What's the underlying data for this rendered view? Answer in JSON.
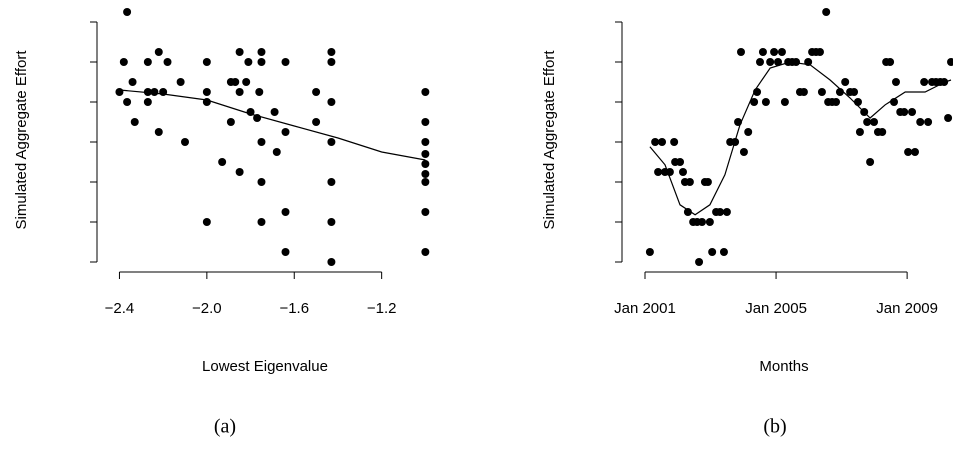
{
  "chart_data": [
    {
      "type": "scatter",
      "caption": "(a)",
      "xlabel": "Lowest Eigenvalue",
      "ylabel": "Simulated Aggregate Effort",
      "xlim": [
        -2.489,
        -0.933
      ],
      "xticks": [
        {
          "value": -2.4,
          "label": "−2.4"
        },
        {
          "value": -2.0,
          "label": "−2.0"
        },
        {
          "value": -1.6,
          "label": "−1.6"
        },
        {
          "value": -1.2,
          "label": "−1.2"
        }
      ],
      "ylim": [
        -0.25,
        6.5
      ],
      "yticks": [
        0,
        1,
        2,
        3,
        4,
        5,
        6
      ],
      "points": {
        "color": "#000000",
        "x": [
          -2.365,
          -2.4,
          -2.38,
          -2.365,
          -2.34,
          -2.33,
          -2.27,
          -2.27,
          -2.27,
          -2.24,
          -2.22,
          -2.22,
          -2.2,
          -2.18,
          -2.12,
          -2.1,
          -2.0,
          -2.0,
          -2.0,
          -2.0,
          -1.93,
          -1.89,
          -1.89,
          -1.87,
          -1.85,
          -1.85,
          -1.85,
          -1.82,
          -1.81,
          -1.8,
          -1.77,
          -1.76,
          -1.75,
          -1.75,
          -1.75,
          -1.75,
          -1.75,
          -1.69,
          -1.68,
          -1.64,
          -1.64,
          -1.64,
          -1.64,
          -1.5,
          -1.5,
          -1.43,
          -1.43,
          -1.43,
          -1.43,
          -1.43,
          -1.43,
          -1.43,
          -1.0,
          -1.0,
          -1.0,
          -1.0,
          -1.0,
          -1.0,
          -1.0,
          -1.0,
          -1.0
        ],
        "values": [
          6.25,
          4.25,
          5,
          4,
          4.5,
          3.5,
          5,
          4.25,
          4,
          4.25,
          5.25,
          3.25,
          4.25,
          5,
          4.5,
          3,
          5,
          4.25,
          4,
          1,
          2.5,
          4.5,
          3.5,
          4.5,
          5.25,
          4.25,
          2.25,
          4.5,
          5,
          3.75,
          3.6,
          4.25,
          5.25,
          5,
          3,
          2,
          1,
          3.75,
          2.75,
          5,
          3.25,
          1.25,
          0.25,
          4.25,
          3.5,
          5.25,
          5,
          4,
          3,
          2,
          1,
          0,
          4.25,
          3.5,
          3,
          2.7,
          2.45,
          2.2,
          2,
          1.25,
          0.25
        ]
      },
      "fit": {
        "color": "#000000",
        "x": [
          -2.4,
          -2.2,
          -2.0,
          -1.8,
          -1.6,
          -1.4,
          -1.2,
          -1.0
        ],
        "values": [
          4.3,
          4.2,
          4.05,
          3.7,
          3.4,
          3.1,
          2.75,
          2.55
        ]
      }
    },
    {
      "type": "scatter",
      "caption": "(b)",
      "xlabel": "Months",
      "ylabel": "Simulated Aggregate Effort",
      "xlim": [
        2000.39,
        2010.4
      ],
      "xticks": [
        {
          "value": 2001,
          "label": "Jan 2001"
        },
        {
          "value": 2005,
          "label": "Jan 2005"
        },
        {
          "value": 2009,
          "label": "Jan 2009"
        }
      ],
      "ylim": [
        -0.25,
        6.5
      ],
      "yticks": [
        0,
        1,
        2,
        3,
        4,
        5,
        6
      ],
      "points": {
        "color": "#000000",
        "x": [
          2001.15,
          2001.31,
          2001.4,
          2001.52,
          2001.61,
          2001.76,
          2001.89,
          2001.92,
          2002.07,
          2002.16,
          2002.22,
          2002.37,
          2002.31,
          2002.47,
          2002.59,
          2002.65,
          2002.74,
          2002.83,
          2002.92,
          2002.98,
          2003.05,
          2003.17,
          2003.29,
          2003.41,
          2003.5,
          2003.6,
          2003.75,
          2003.84,
          2003.93,
          2004.02,
          2004.15,
          2004.33,
          2004.42,
          2004.51,
          2004.6,
          2004.69,
          2004.82,
          2004.94,
          2005.06,
          2005.18,
          2005.27,
          2005.37,
          2005.49,
          2005.61,
          2005.73,
          2005.85,
          2005.98,
          2006.1,
          2006.22,
          2006.34,
          2006.4,
          2006.53,
          2006.59,
          2006.71,
          2006.83,
          2006.95,
          2007.11,
          2007.26,
          2007.38,
          2007.5,
          2007.56,
          2007.69,
          2007.78,
          2007.87,
          2007.99,
          2008.11,
          2008.24,
          2008.36,
          2008.48,
          2008.6,
          2008.66,
          2008.79,
          2008.91,
          2009.03,
          2009.15,
          2009.24,
          2009.4,
          2009.52,
          2009.64,
          2009.76,
          2009.88,
          2010.01,
          2010.13,
          2010.25,
          2010.34
        ],
        "values": [
          0.25,
          3,
          2.25,
          3,
          2.25,
          2.25,
          3,
          2.5,
          2.5,
          2.25,
          2,
          2,
          1.25,
          1,
          1,
          0,
          1,
          2,
          2,
          1,
          0.25,
          1.25,
          1.25,
          0.25,
          1.25,
          3,
          3,
          3.5,
          5.25,
          2.75,
          3.25,
          4,
          4.25,
          5,
          5.25,
          4,
          5,
          5.25,
          5,
          5.25,
          4,
          5,
          5,
          5,
          4.25,
          4.25,
          5,
          5.25,
          5.25,
          5.25,
          4.25,
          6.25,
          4,
          4,
          4,
          4.25,
          4.5,
          4.25,
          4.25,
          4,
          3.25,
          3.75,
          3.5,
          2.5,
          3.5,
          3.25,
          3.25,
          5,
          5,
          4,
          4.5,
          3.75,
          3.75,
          2.75,
          3.75,
          2.75,
          3.5,
          4.5,
          3.5,
          4.5,
          4.5,
          4.5,
          4.5,
          3.6,
          5
        ]
      },
      "fit": {
        "color": "#000000",
        "x": [
          2001.15,
          2001.61,
          2002.07,
          2002.53,
          2002.98,
          2003.44,
          2003.9,
          2004.36,
          2004.82,
          2005.43,
          2006.04,
          2006.65,
          2007.26,
          2007.87,
          2008.33,
          2008.94,
          2009.55,
          2010.16,
          2010.34
        ],
        "values": [
          2.88,
          2.43,
          1.43,
          1.18,
          1.43,
          2.18,
          3.43,
          4.3,
          4.85,
          5,
          4.93,
          4.55,
          4.1,
          3.6,
          3.93,
          4.25,
          4.25,
          4.5,
          4.55
        ]
      }
    }
  ]
}
